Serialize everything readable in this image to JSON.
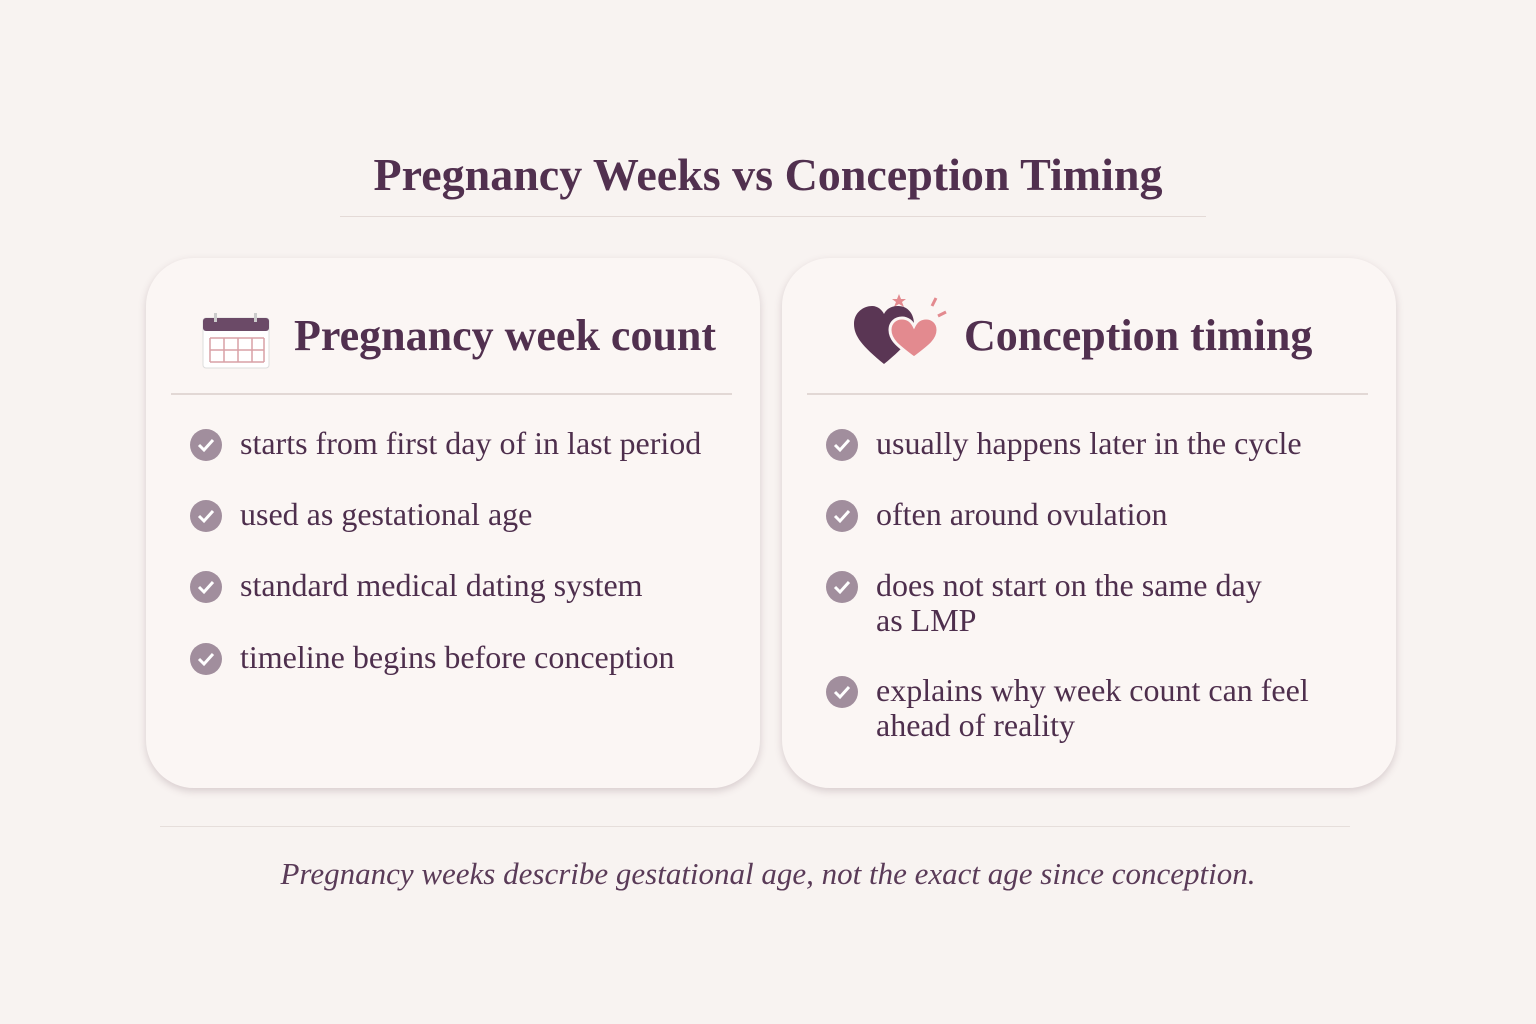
{
  "title": "Pregnancy Weeks vs Conception Timing",
  "left_card": {
    "heading": "Pregnancy week count",
    "icon": "calendar-icon",
    "items": [
      "starts from first day of in last period",
      "used as gestational age",
      "standard medical dating system",
      "timeline begins before conception"
    ]
  },
  "right_card": {
    "heading": "Conception timing",
    "icon": "hearts-icon",
    "items": [
      "usually happens later in the cycle",
      "often around ovulation",
      "does not start on the same day as LMP",
      "explains why week count can feel ahead of reality"
    ]
  },
  "footer": "Pregnancy weeks describe gestational age, not the exact age since conception.",
  "colors": {
    "text": "#51304f",
    "check": "#a18e9d",
    "pink": "#e38a8f",
    "background": "#f8f3f1"
  }
}
